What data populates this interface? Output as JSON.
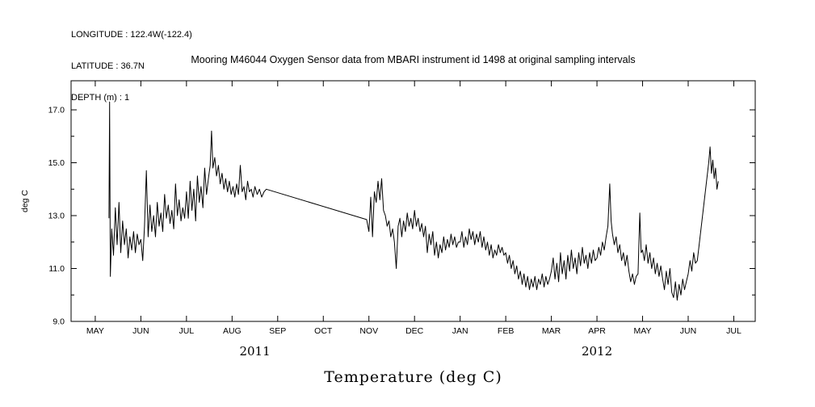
{
  "header": {
    "longitude": "LONGITUDE : 122.4W(-122.4)",
    "latitude": "LATITUDE : 36.7N",
    "depth": "DEPTH (m) : 1"
  },
  "title": "Mooring M46044 Oxygen Sensor data from MBARI instrument id 1498 at original sampling intervals",
  "chart_data": {
    "type": "line",
    "title": "Mooring M46044 Oxygen Sensor data from MBARI instrument id 1498 at original sampling intervals",
    "xlabel": "Temperature (deg C)",
    "ylabel": "deg C",
    "line_color": "#000000",
    "grid": false,
    "legend": "none",
    "x_tick_labels": [
      "MAY",
      "JUN",
      "JUL",
      "AUG",
      "SEP",
      "OCT",
      "NOV",
      "DEC",
      "JAN",
      "FEB",
      "MAR",
      "APR",
      "MAY",
      "JUN",
      "JUL"
    ],
    "year_labels": [
      {
        "label": "2011",
        "month": 3.5
      },
      {
        "label": "2012",
        "month": 11.0
      }
    ],
    "y_ticks": [
      9.0,
      11.0,
      13.0,
      15.0,
      17.0
    ],
    "y_minor_ticks": [
      10.0,
      12.0,
      14.0,
      16.0
    ],
    "ylim": [
      9.0,
      18.1
    ],
    "xlim_months": [
      -0.53,
      14.47
    ],
    "x_unit": "months since 2011-05-01",
    "x": [
      0.3,
      0.315,
      0.33,
      0.36,
      0.4,
      0.44,
      0.48,
      0.52,
      0.56,
      0.6,
      0.64,
      0.68,
      0.72,
      0.76,
      0.8,
      0.84,
      0.88,
      0.92,
      0.96,
      1.0,
      1.04,
      1.08,
      1.12,
      1.16,
      1.2,
      1.24,
      1.28,
      1.32,
      1.36,
      1.4,
      1.44,
      1.48,
      1.52,
      1.56,
      1.6,
      1.64,
      1.68,
      1.72,
      1.76,
      1.8,
      1.84,
      1.88,
      1.92,
      1.96,
      2.0,
      2.04,
      2.08,
      2.12,
      2.16,
      2.2,
      2.24,
      2.28,
      2.32,
      2.36,
      2.4,
      2.44,
      2.48,
      2.52,
      2.55,
      2.58,
      2.62,
      2.66,
      2.7,
      2.74,
      2.78,
      2.82,
      2.86,
      2.9,
      2.94,
      2.98,
      3.02,
      3.06,
      3.1,
      3.14,
      3.18,
      3.22,
      3.26,
      3.3,
      3.34,
      3.38,
      3.42,
      3.46,
      3.5,
      3.55,
      3.6,
      3.65,
      3.7,
      3.75,
      5.95,
      6.0,
      6.04,
      6.08,
      6.12,
      6.16,
      6.2,
      6.24,
      6.28,
      6.32,
      6.36,
      6.4,
      6.44,
      6.48,
      6.52,
      6.56,
      6.6,
      6.64,
      6.68,
      6.72,
      6.76,
      6.8,
      6.84,
      6.88,
      6.92,
      6.96,
      7.0,
      7.04,
      7.08,
      7.12,
      7.16,
      7.2,
      7.24,
      7.28,
      7.32,
      7.36,
      7.4,
      7.44,
      7.48,
      7.52,
      7.56,
      7.6,
      7.64,
      7.68,
      7.72,
      7.76,
      7.8,
      7.84,
      7.88,
      7.92,
      7.96,
      8.0,
      8.04,
      8.08,
      8.12,
      8.16,
      8.2,
      8.24,
      8.28,
      8.32,
      8.36,
      8.4,
      8.44,
      8.48,
      8.52,
      8.56,
      8.6,
      8.64,
      8.68,
      8.72,
      8.76,
      8.8,
      8.84,
      8.88,
      8.92,
      8.96,
      9.0,
      9.04,
      9.08,
      9.12,
      9.16,
      9.2,
      9.24,
      9.28,
      9.32,
      9.36,
      9.4,
      9.44,
      9.48,
      9.52,
      9.56,
      9.6,
      9.64,
      9.68,
      9.72,
      9.76,
      9.8,
      9.84,
      9.88,
      9.92,
      9.96,
      10.0,
      10.04,
      10.08,
      10.12,
      10.16,
      10.2,
      10.24,
      10.28,
      10.32,
      10.36,
      10.4,
      10.44,
      10.48,
      10.52,
      10.56,
      10.6,
      10.64,
      10.68,
      10.72,
      10.76,
      10.8,
      10.84,
      10.88,
      10.92,
      10.96,
      11.0,
      11.04,
      11.08,
      11.12,
      11.16,
      11.2,
      11.24,
      11.28,
      11.31,
      11.34,
      11.38,
      11.42,
      11.46,
      11.5,
      11.54,
      11.58,
      11.62,
      11.66,
      11.7,
      11.74,
      11.78,
      11.82,
      11.86,
      11.9,
      11.94,
      11.97,
      12.0,
      12.04,
      12.08,
      12.12,
      12.16,
      12.2,
      12.24,
      12.28,
      12.32,
      12.36,
      12.4,
      12.44,
      12.48,
      12.52,
      12.56,
      12.6,
      12.64,
      12.68,
      12.72,
      12.76,
      12.8,
      12.84,
      12.88,
      12.92,
      12.96,
      13.0,
      13.04,
      13.08,
      13.12,
      13.16,
      13.2,
      13.45,
      13.48,
      13.51,
      13.54,
      13.57,
      13.6,
      13.63,
      13.66
    ],
    "y": [
      12.9,
      17.3,
      10.7,
      12.5,
      11.5,
      13.3,
      11.9,
      13.5,
      11.6,
      12.8,
      11.9,
      12.5,
      11.4,
      12.2,
      11.7,
      12.4,
      11.6,
      12.3,
      11.9,
      12.1,
      11.3,
      12.6,
      14.7,
      12.2,
      13.4,
      12.4,
      13.0,
      12.2,
      13.5,
      12.6,
      13.1,
      12.4,
      13.8,
      12.9,
      13.4,
      12.7,
      13.2,
      12.5,
      14.2,
      13.0,
      13.6,
      12.8,
      13.3,
      12.9,
      13.9,
      12.9,
      14.3,
      13.2,
      14.0,
      12.8,
      14.5,
      13.5,
      14.1,
      13.3,
      14.8,
      13.8,
      14.4,
      14.9,
      16.2,
      14.8,
      15.2,
      14.5,
      14.9,
      14.2,
      14.6,
      14.0,
      14.4,
      13.9,
      14.3,
      13.8,
      14.1,
      13.7,
      14.2,
      13.8,
      14.9,
      13.9,
      14.1,
      13.6,
      14.3,
      13.9,
      14.0,
      13.7,
      14.1,
      13.8,
      14.0,
      13.7,
      13.9,
      14.0,
      12.85,
      12.4,
      13.7,
      12.2,
      13.9,
      13.5,
      14.3,
      13.6,
      14.4,
      13.2,
      13.0,
      12.6,
      12.8,
      12.2,
      12.5,
      12.0,
      11.0,
      12.6,
      12.9,
      12.2,
      12.8,
      12.4,
      13.1,
      12.6,
      12.9,
      12.5,
      13.2,
      12.6,
      12.9,
      12.4,
      12.7,
      12.2,
      12.6,
      11.6,
      12.3,
      11.9,
      12.4,
      11.5,
      12.0,
      11.4,
      11.9,
      11.6,
      12.2,
      11.7,
      12.1,
      11.8,
      12.3,
      11.9,
      12.2,
      11.8,
      12.0,
      12.0,
      12.4,
      11.8,
      12.2,
      11.9,
      12.5,
      12.1,
      12.4,
      11.9,
      12.3,
      12.0,
      12.4,
      11.8,
      12.2,
      11.7,
      12.0,
      11.5,
      11.9,
      11.4,
      11.7,
      11.5,
      11.9,
      11.6,
      11.8,
      11.5,
      11.6,
      11.2,
      11.5,
      11.0,
      11.3,
      10.8,
      11.1,
      10.6,
      10.9,
      10.4,
      10.8,
      10.3,
      10.7,
      10.2,
      10.6,
      10.3,
      10.7,
      10.2,
      10.6,
      10.4,
      10.8,
      10.3,
      10.7,
      10.4,
      10.6,
      10.9,
      11.4,
      10.6,
      11.2,
      10.5,
      11.6,
      10.8,
      11.3,
      10.6,
      11.5,
      10.9,
      11.7,
      11.0,
      11.4,
      10.8,
      11.6,
      11.1,
      11.8,
      11.2,
      11.5,
      11.0,
      11.6,
      11.2,
      11.7,
      11.3,
      11.4,
      11.8,
      11.5,
      12.0,
      11.7,
      12.2,
      12.6,
      14.2,
      12.8,
      12.3,
      11.9,
      12.2,
      11.6,
      11.9,
      11.3,
      11.6,
      11.1,
      11.5,
      10.9,
      10.5,
      10.8,
      10.4,
      10.7,
      10.8,
      13.1,
      11.6,
      11.7,
      11.3,
      11.9,
      11.2,
      11.6,
      11.0,
      11.4,
      10.8,
      11.2,
      10.7,
      11.1,
      10.6,
      10.2,
      10.9,
      10.4,
      11.0,
      10.1,
      9.9,
      10.5,
      9.8,
      10.4,
      10.0,
      10.6,
      10.2,
      10.5,
      10.8,
      11.3,
      10.9,
      11.6,
      11.2,
      11.3,
      15.0,
      15.6,
      14.6,
      15.1,
      14.4,
      14.8,
      14.0,
      14.3
    ]
  }
}
